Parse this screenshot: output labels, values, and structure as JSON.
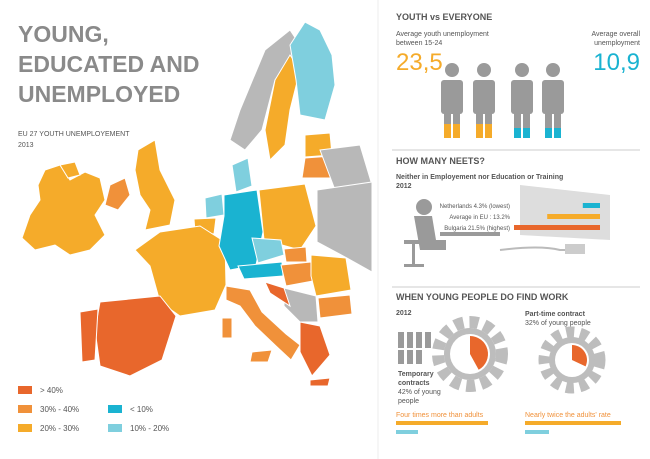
{
  "header": {
    "title_lines": [
      "YOUNG,",
      "EDUCATED AND",
      "UNEMPLOYED"
    ],
    "map_title": "EU 27 YOUTH UNEMPLOYEMENT",
    "map_year": "2013"
  },
  "legend": [
    {
      "label": "> 40%",
      "color": "#e8672c"
    },
    {
      "label": "30% - 40%",
      "color": "#f0913a"
    },
    {
      "label": "20% - 30%",
      "color": "#f5ab2a"
    },
    {
      "label": "< 10%",
      "color": "#1ab3d1"
    },
    {
      "label": "10% - 20%",
      "color": "#7fcfde"
    }
  ],
  "youth": {
    "title": "YOUTH vs EVERYONE",
    "youth_label_lines": [
      "Average youth unemployment",
      "between 15-24"
    ],
    "youth_value": "23,5",
    "overall_label_lines": [
      "Average overall",
      "unemployment"
    ],
    "overall_value": "10,9"
  },
  "neets": {
    "title": "HOW MANY NEETS?",
    "subtitle_lines": [
      "Neither in Employement nor Education or Training",
      "2012"
    ],
    "bars": [
      {
        "label": "Netherlands 4.3% (lowest)",
        "value": 4.3,
        "color": "#1ab3d1"
      },
      {
        "label": "Average in EU : 13.2%",
        "value": 13.2,
        "color": "#f5ab2a"
      },
      {
        "label": "Bulgaria 21.5% (highest)",
        "value": 21.5,
        "color": "#e8672c"
      }
    ]
  },
  "work": {
    "title": "WHEN YOUNG PEOPLE DO FIND WORK",
    "year": "2012",
    "temporary": {
      "title_lines": [
        "Temporary",
        "contracts"
      ],
      "share_label_lines": [
        "42% of young",
        "people"
      ],
      "share": 42,
      "comparison": "Four times more than adults"
    },
    "part_time": {
      "title": "Part-time contract",
      "share_label": "32% of young people",
      "share": 32,
      "comparison": "Nearly twice the adults' rate"
    }
  }
}
